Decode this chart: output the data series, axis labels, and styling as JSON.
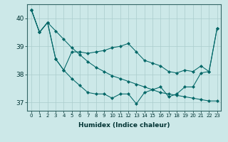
{
  "xlabel": "Humidex (Indice chaleur)",
  "background_color": "#cce8e8",
  "grid_color": "#aacccc",
  "line_color": "#006666",
  "xlim": [
    -0.5,
    23.5
  ],
  "ylim": [
    36.7,
    40.5
  ],
  "yticks": [
    37,
    38,
    39,
    40
  ],
  "xticks": [
    0,
    1,
    2,
    3,
    4,
    5,
    6,
    7,
    8,
    9,
    10,
    11,
    12,
    13,
    14,
    15,
    16,
    17,
    18,
    19,
    20,
    21,
    22,
    23
  ],
  "line1": [
    40.3,
    39.5,
    39.85,
    38.55,
    38.15,
    37.85,
    37.6,
    37.35,
    37.3,
    37.3,
    37.15,
    37.3,
    37.3,
    36.95,
    37.35,
    37.45,
    37.55,
    37.2,
    37.3,
    37.55,
    37.55,
    38.05,
    38.1,
    39.65
  ],
  "line2": [
    40.3,
    39.5,
    39.85,
    38.55,
    38.15,
    38.8,
    38.8,
    38.75,
    38.8,
    38.85,
    38.95,
    39.0,
    39.1,
    38.8,
    38.5,
    38.4,
    38.3,
    38.1,
    38.05,
    38.15,
    38.1,
    38.3,
    38.1,
    39.65
  ],
  "line3": [
    40.3,
    39.5,
    39.85,
    39.55,
    39.25,
    38.95,
    38.7,
    38.45,
    38.25,
    38.1,
    37.95,
    37.85,
    37.75,
    37.65,
    37.55,
    37.45,
    37.35,
    37.3,
    37.25,
    37.2,
    37.15,
    37.1,
    37.05,
    37.05
  ]
}
